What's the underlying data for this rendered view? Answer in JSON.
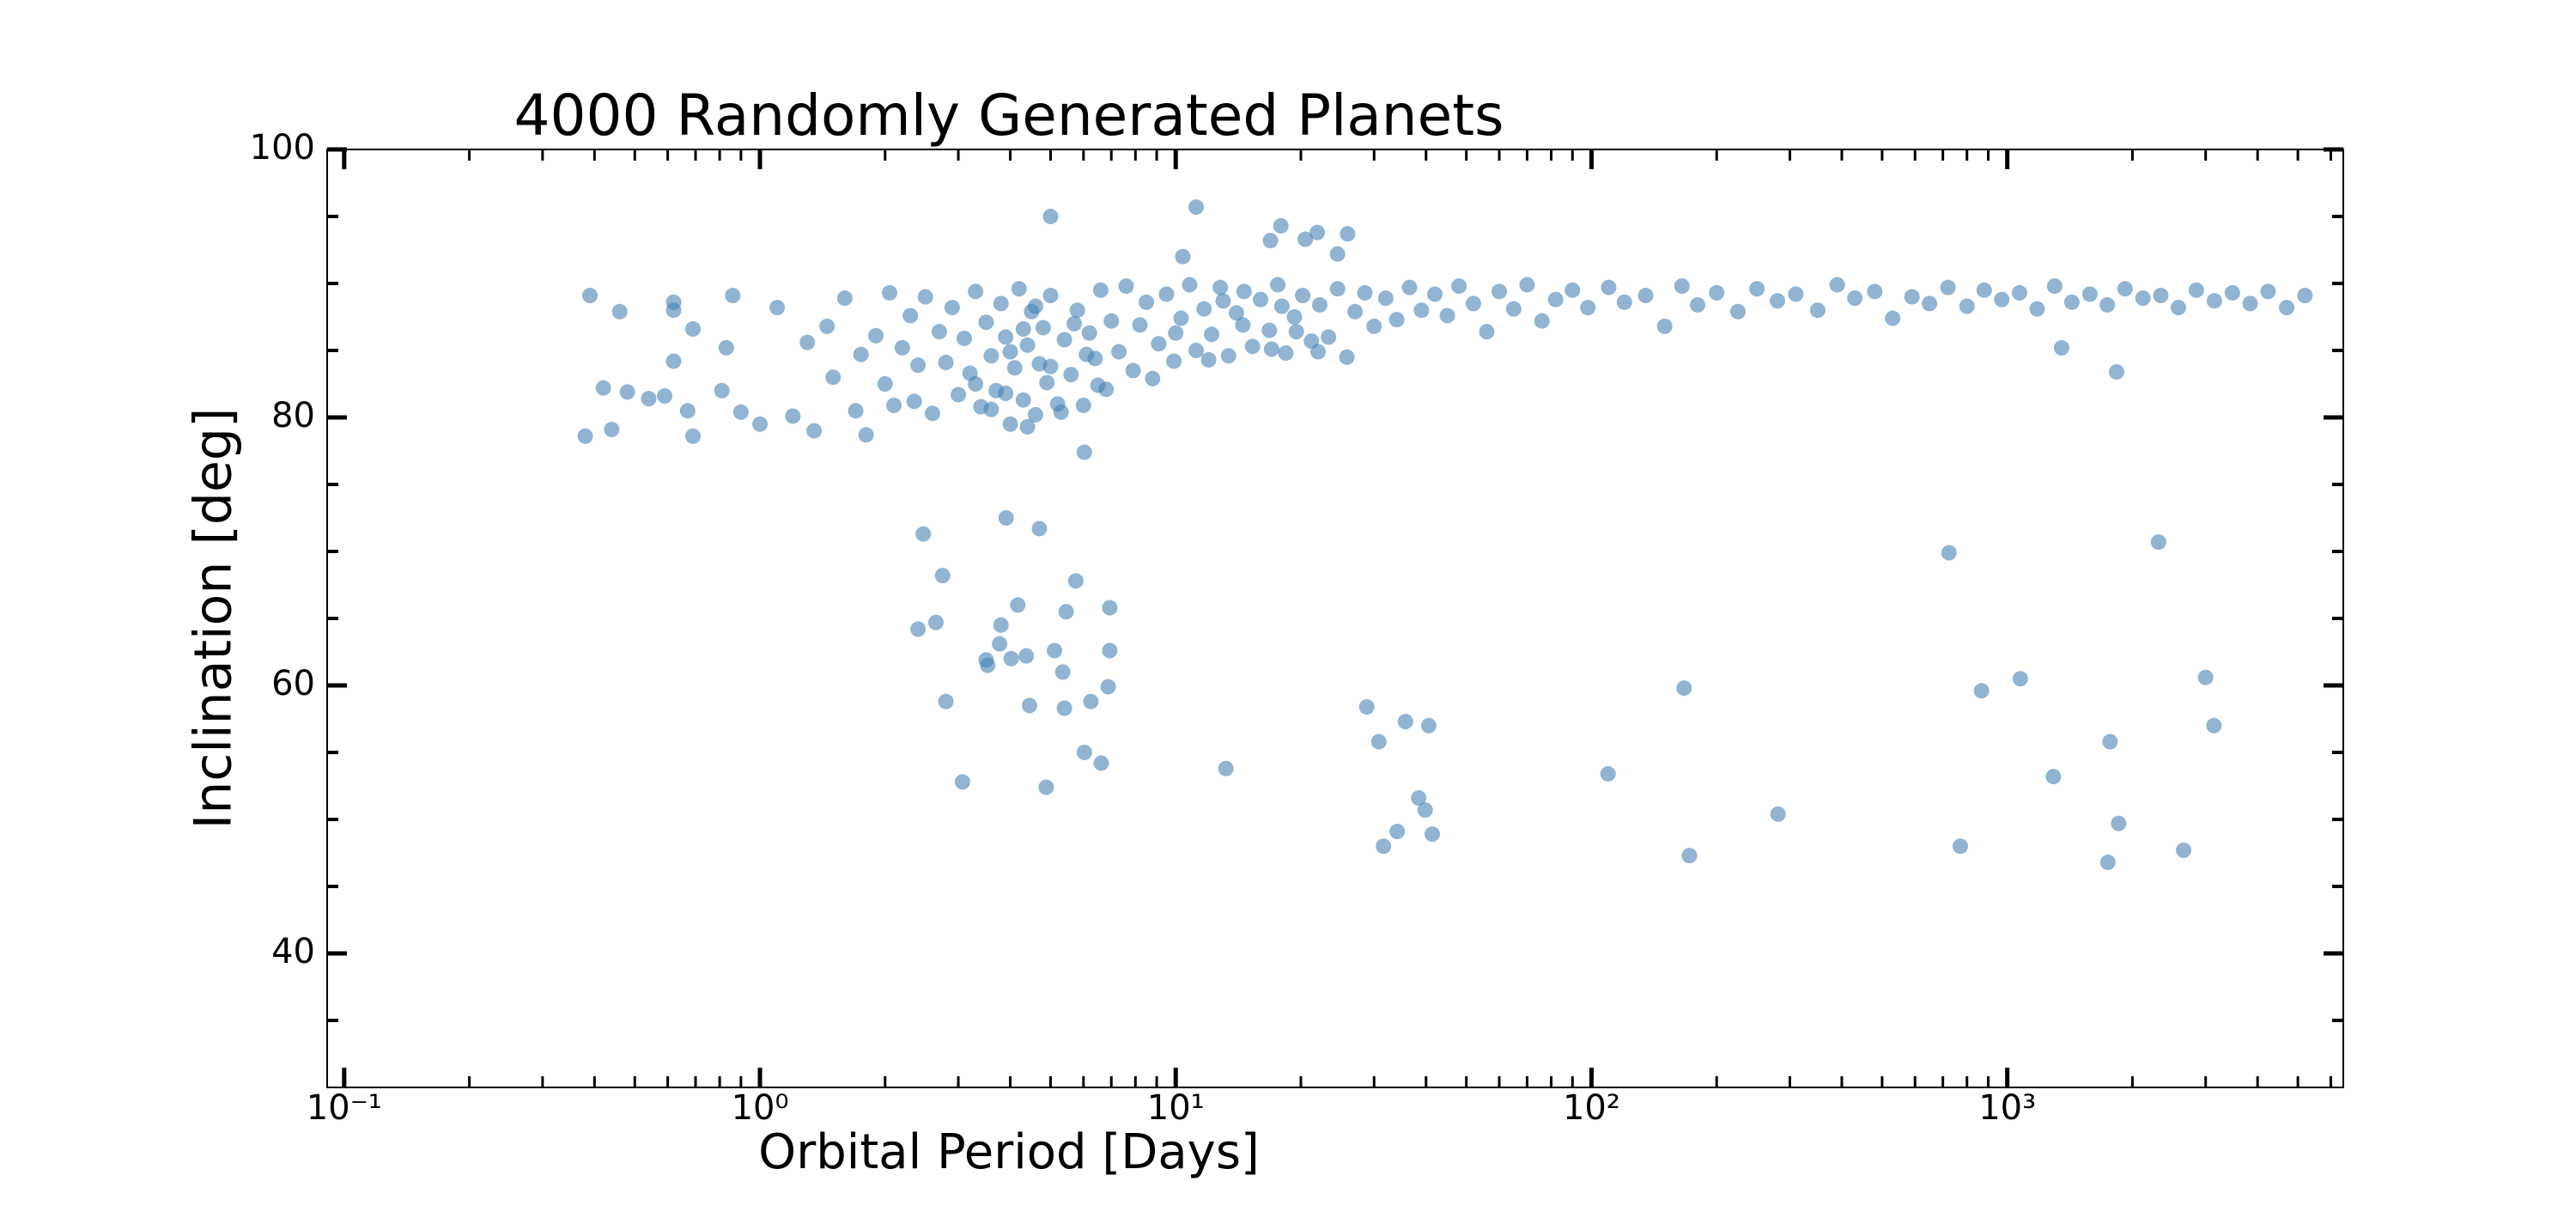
{
  "chart_data": {
    "type": "scatter",
    "title": "4000 Randomly Generated Planets",
    "x_label": "Orbital Period [Days]",
    "y_label": "Inclination [deg]",
    "log_x": true,
    "color": "#4682b4",
    "alpha": 0.6,
    "xlim": [
      0.091,
      6430
    ],
    "ylim": [
      30,
      100
    ],
    "xticks": [
      {
        "value": 0.1,
        "label": "10⁻¹"
      },
      {
        "value": 1,
        "label": "10⁰"
      },
      {
        "value": 10,
        "label": "10¹"
      },
      {
        "value": 100,
        "label": "10²"
      },
      {
        "value": 1000,
        "label": "10³"
      }
    ],
    "xminorticks": [
      0.2,
      0.3,
      0.4,
      0.5,
      0.6,
      0.7,
      0.8,
      0.9,
      2,
      3,
      4,
      5,
      6,
      7,
      8,
      9,
      20,
      30,
      40,
      50,
      60,
      70,
      80,
      90,
      200,
      300,
      400,
      500,
      600,
      700,
      800,
      900,
      2000,
      3000,
      4000,
      5000,
      6000
    ],
    "yticks": [
      40,
      60,
      80,
      100
    ],
    "yminorticks": [
      35,
      45,
      50,
      55,
      65,
      70,
      75,
      85,
      90,
      95
    ],
    "x": [
      0.38,
      0.39,
      0.42,
      0.44,
      0.46,
      0.48,
      0.54,
      0.59,
      0.62,
      0.62,
      0.62,
      0.67,
      0.69,
      0.69,
      0.81,
      0.83,
      0.86,
      0.9,
      1.0,
      2.47,
      2.75,
      2.4,
      2.65,
      2.8,
      3.07,
      3.5,
      3.53,
      3.77,
      3.8,
      3.91,
      4.02,
      4.17,
      4.37,
      4.45,
      4.7,
      4.88,
      5.11,
      5.35,
      5.4,
      5.45,
      5.75,
      6.03,
      6.25,
      6.62,
      6.88,
      6.94,
      6.94,
      6.03,
      13.2,
      28.8,
      30.8,
      31.6,
      34.1,
      35.7,
      38.4,
      39.8,
      40.6,
      41.4,
      109.6,
      167,
      172,
      281,
      724,
      771,
      867,
      1075,
      1291,
      1351,
      1767,
      1853,
      1746,
      1832,
      2311,
      2655,
      3000,
      3141,
      5.0,
      11.2,
      10.4,
      17.9,
      16.9,
      20.5,
      21.9,
      24.5,
      25.9,
      1.1,
      1.2,
      1.3,
      1.35,
      1.45,
      1.5,
      1.6,
      1.7,
      1.75,
      1.8,
      1.9,
      2.0,
      2.05,
      2.1,
      2.2,
      2.3,
      2.35,
      2.4,
      2.5,
      2.6,
      2.7,
      2.8,
      2.9,
      3.0,
      3.1,
      3.2,
      3.3,
      3.4,
      3.5,
      3.6,
      3.7,
      3.8,
      3.9,
      4.0,
      4.1,
      4.2,
      4.3,
      4.4,
      4.5,
      4.6,
      4.7,
      4.8,
      4.9,
      5.0,
      5.2,
      5.4,
      5.6,
      5.8,
      6.0,
      6.2,
      6.4,
      6.6,
      6.8,
      7.0,
      7.3,
      7.6,
      7.9,
      8.2,
      8.5,
      8.8,
      9.1,
      9.5,
      9.9,
      10.3,
      10.8,
      11.2,
      11.7,
      12.2,
      12.8,
      13.4,
      14.0,
      14.6,
      15.3,
      16.0,
      16.8,
      17.6,
      18.4,
      19.3,
      20.2,
      21.2,
      22.2,
      23.3,
      24.5,
      25.8,
      27.0,
      28.5,
      30.0,
      32.0,
      34.0,
      36.5,
      39.0,
      42.0,
      45.0,
      48.0,
      52.0,
      56.0,
      60.0,
      65.0,
      70.0,
      76.0,
      82.0,
      90.0,
      98.0,
      110,
      120,
      135,
      150,
      165,
      180,
      200,
      225,
      250,
      280,
      310,
      350,
      390,
      430,
      480,
      530,
      590,
      650,
      720,
      800,
      880,
      970,
      1070,
      1180,
      1300,
      1430,
      1580,
      1740,
      1920,
      2120,
      2340,
      2580,
      2850,
      3150,
      3480,
      3840,
      4240,
      4700,
      5200,
      3.3,
      3.6,
      4.0,
      4.3,
      4.6,
      5.0,
      5.3,
      5.7,
      6.1,
      6.5,
      3.9,
      4.4,
      10.0,
      12.0,
      14.5,
      17.0,
      19.5,
      22.0,
      13.0,
      18.0
    ],
    "values": [
      78.6,
      89.1,
      82.2,
      79.1,
      87.9,
      81.9,
      81.4,
      81.6,
      88.6,
      88.0,
      84.2,
      80.5,
      86.6,
      78.6,
      82.0,
      85.2,
      89.1,
      80.4,
      79.5,
      71.3,
      68.2,
      64.2,
      64.7,
      58.8,
      52.8,
      61.9,
      61.5,
      63.1,
      64.5,
      72.5,
      62.0,
      66.0,
      62.2,
      58.5,
      71.7,
      52.4,
      62.6,
      61.0,
      58.3,
      65.5,
      67.8,
      55.0,
      58.8,
      54.2,
      59.9,
      65.8,
      62.6,
      77.4,
      53.8,
      58.4,
      55.8,
      48.0,
      49.1,
      57.3,
      51.6,
      50.7,
      57.0,
      48.9,
      53.4,
      59.8,
      47.3,
      50.4,
      69.9,
      48.0,
      59.6,
      60.5,
      53.2,
      85.2,
      55.8,
      49.7,
      46.8,
      83.4,
      70.7,
      47.7,
      60.6,
      57.0,
      95.0,
      95.7,
      92.0,
      94.3,
      93.2,
      93.3,
      93.8,
      92.2,
      93.7,
      88.2,
      80.1,
      85.6,
      79.0,
      86.8,
      83.0,
      88.9,
      80.5,
      84.7,
      78.7,
      86.1,
      82.5,
      89.3,
      80.9,
      85.2,
      87.6,
      81.2,
      83.9,
      89.0,
      80.3,
      86.4,
      84.1,
      88.2,
      81.7,
      85.9,
      83.3,
      89.4,
      80.8,
      87.1,
      84.6,
      82.0,
      88.5,
      86.0,
      79.5,
      83.7,
      89.6,
      81.3,
      85.4,
      87.9,
      80.2,
      84.0,
      86.7,
      82.6,
      89.1,
      81.0,
      85.8,
      83.2,
      88.0,
      80.9,
      86.3,
      84.4,
      89.5,
      82.1,
      87.2,
      84.9,
      89.8,
      83.5,
      86.9,
      88.6,
      82.9,
      85.5,
      89.2,
      84.2,
      87.4,
      89.9,
      85.0,
      88.1,
      86.2,
      89.7,
      84.6,
      87.8,
      89.4,
      85.3,
      88.8,
      86.5,
      89.9,
      84.8,
      87.5,
      89.1,
      85.7,
      88.4,
      86.0,
      89.6,
      84.5,
      87.9,
      89.3,
      86.8,
      88.9,
      87.3,
      89.7,
      88.0,
      89.2,
      87.6,
      89.8,
      88.5,
      86.4,
      89.4,
      88.1,
      89.9,
      87.2,
      88.8,
      89.5,
      88.2,
      89.7,
      88.6,
      89.1,
      86.8,
      89.8,
      88.4,
      89.3,
      87.9,
      89.6,
      88.7,
      89.2,
      88.0,
      89.9,
      88.9,
      89.4,
      87.4,
      89.0,
      88.5,
      89.7,
      88.3,
      89.5,
      88.8,
      89.3,
      88.1,
      89.8,
      88.6,
      89.2,
      88.4,
      89.6,
      88.9,
      89.1,
      88.2,
      89.5,
      88.7,
      89.3,
      88.5,
      89.4,
      88.2,
      89.1,
      82.5,
      80.6,
      84.9,
      86.6,
      88.3,
      83.8,
      80.4,
      87.0,
      84.7,
      82.4,
      81.8,
      79.3,
      86.3,
      84.3,
      86.9,
      85.1,
      86.4,
      84.9,
      88.7,
      88.3
    ]
  }
}
